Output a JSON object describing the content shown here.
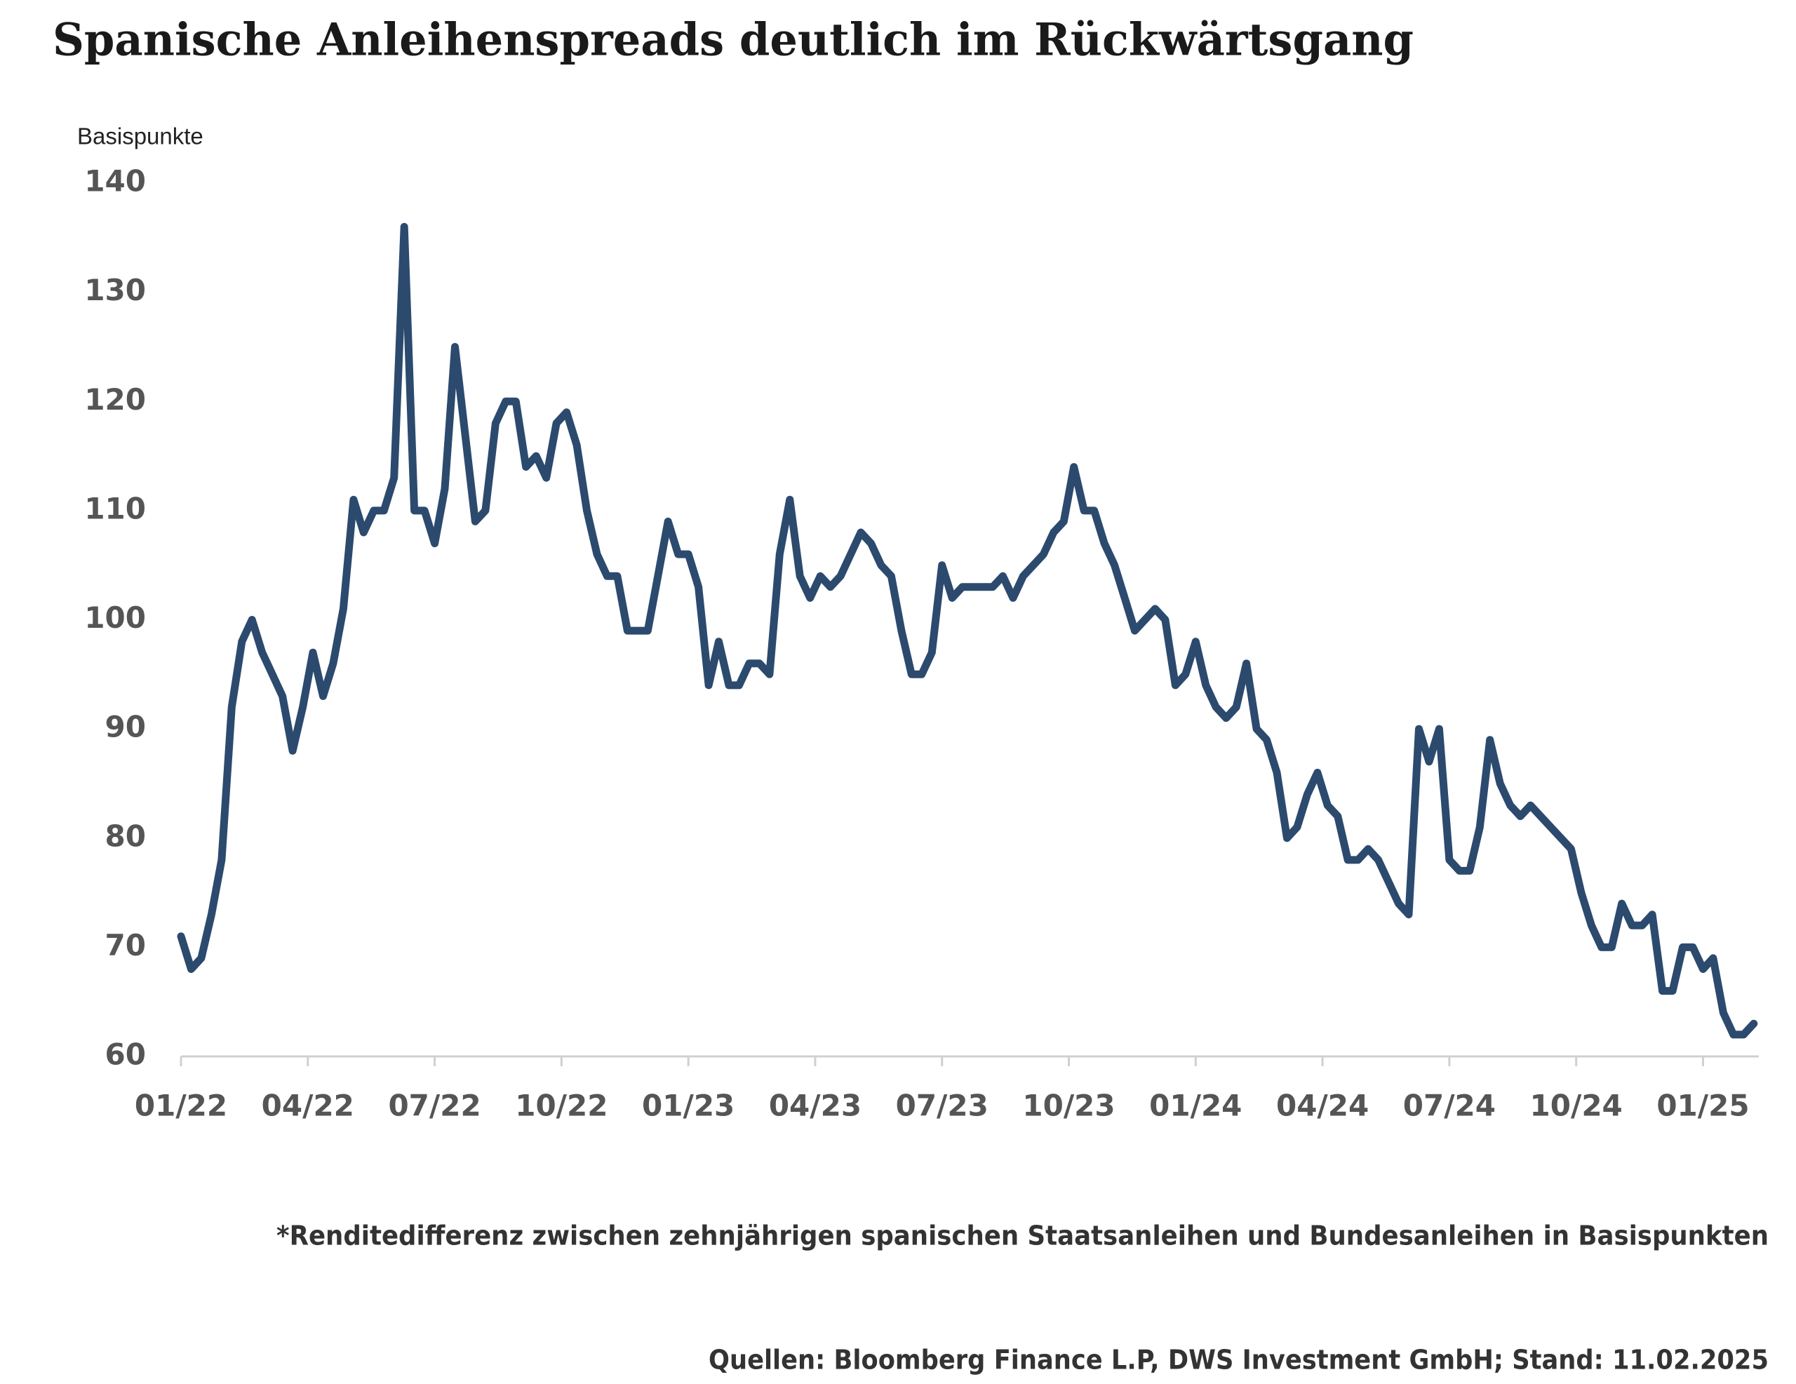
{
  "chart_data": {
    "type": "line",
    "title": "Spanische Anleihenspreads deutlich im Rückwärtsgang",
    "y_label": "Basispunkte",
    "footnote": "*Renditedifferenz zwischen zehnjährigen spanischen Staatsanleihen und Bundesanleihen in Basispunkten",
    "source": "Quellen: Bloomberg Finance L.P, DWS Investment GmbH; Stand: 11.02.2025",
    "color": "#2c4a6e",
    "ylim": [
      60,
      140
    ],
    "yticks": [
      60,
      70,
      80,
      90,
      100,
      110,
      120,
      130,
      140
    ],
    "xlim": [
      2022,
      2025.11
    ],
    "xticks": [
      {
        "value": 2022,
        "label": "01/22"
      },
      {
        "value": 2022.25,
        "label": "04/22"
      },
      {
        "value": 2022.5,
        "label": "07/22"
      },
      {
        "value": 2022.75,
        "label": "10/22"
      },
      {
        "value": 2023,
        "label": "01/23"
      },
      {
        "value": 2023.25,
        "label": "04/23"
      },
      {
        "value": 2023.5,
        "label": "07/23"
      },
      {
        "value": 2023.75,
        "label": "10/23"
      },
      {
        "value": 2024,
        "label": "01/24"
      },
      {
        "value": 2024.25,
        "label": "04/24"
      },
      {
        "value": 2024.5,
        "label": "07/24"
      },
      {
        "value": 2024.75,
        "label": "10/24"
      },
      {
        "value": 2025,
        "label": "01/25"
      }
    ],
    "x": [
      2022,
      2022.02,
      2022.04,
      2022.06,
      2022.08,
      2022.1,
      2022.12,
      2022.14,
      2022.16,
      2022.18,
      2022.2,
      2022.22,
      2022.24,
      2022.26,
      2022.28,
      2022.3,
      2022.32,
      2022.34,
      2022.36,
      2022.38,
      2022.4,
      2022.42,
      2022.44,
      2022.46,
      2022.48,
      2022.5,
      2022.52,
      2022.54,
      2022.56,
      2022.58,
      2022.6,
      2022.62,
      2022.64,
      2022.66,
      2022.68,
      2022.7,
      2022.72,
      2022.74,
      2022.76,
      2022.78,
      2022.8,
      2022.82,
      2022.84,
      2022.86,
      2022.88,
      2022.9,
      2022.92,
      2022.94,
      2022.96,
      2022.98,
      2023,
      2023.02,
      2023.04,
      2023.06,
      2023.08,
      2023.1,
      2023.12,
      2023.14,
      2023.16,
      2023.18,
      2023.2,
      2023.22,
      2023.24,
      2023.26,
      2023.28,
      2023.3,
      2023.32,
      2023.34,
      2023.36,
      2023.38,
      2023.4,
      2023.42,
      2023.44,
      2023.46,
      2023.48,
      2023.5,
      2023.52,
      2023.54,
      2023.56,
      2023.58,
      2023.6,
      2023.62,
      2023.64,
      2023.66,
      2023.68,
      2023.7,
      2023.72,
      2023.74,
      2023.76,
      2023.78,
      2023.8,
      2023.82,
      2023.84,
      2023.86,
      2023.88,
      2023.9,
      2023.92,
      2023.94,
      2023.96,
      2023.98,
      2024,
      2024.02,
      2024.04,
      2024.06,
      2024.08,
      2024.1,
      2024.12,
      2024.14,
      2024.16,
      2024.18,
      2024.2,
      2024.22,
      2024.24,
      2024.26,
      2024.28,
      2024.3,
      2024.32,
      2024.34,
      2024.36,
      2024.38,
      2024.4,
      2024.42,
      2024.44,
      2024.46,
      2024.48,
      2024.5,
      2024.52,
      2024.54,
      2024.56,
      2024.58,
      2024.6,
      2024.62,
      2024.64,
      2024.66,
      2024.68,
      2024.7,
      2024.72,
      2024.74,
      2024.76,
      2024.78,
      2024.8,
      2024.82,
      2024.84,
      2024.86,
      2024.88,
      2024.9,
      2024.92,
      2024.94,
      2024.96,
      2024.98,
      2025,
      2025.02,
      2025.04,
      2025.06,
      2025.08,
      2025.1
    ],
    "values": [
      71,
      68,
      69,
      73,
      78,
      92,
      98,
      100,
      97,
      95,
      93,
      88,
      92,
      97,
      93,
      96,
      101,
      111,
      108,
      110,
      110,
      113,
      136,
      110,
      110,
      107,
      112,
      125,
      117,
      109,
      110,
      118,
      120,
      120,
      114,
      115,
      113,
      118,
      119,
      116,
      110,
      106,
      104,
      104,
      99,
      99,
      99,
      104,
      109,
      106,
      106,
      103,
      94,
      98,
      94,
      94,
      96,
      96,
      95,
      106,
      111,
      104,
      102,
      104,
      103,
      104,
      106,
      108,
      107,
      105,
      104,
      99,
      95,
      95,
      97,
      105,
      102,
      103,
      103,
      103,
      103,
      104,
      102,
      104,
      105,
      106,
      108,
      109,
      114,
      110,
      110,
      107,
      105,
      102,
      99,
      100,
      101,
      100,
      94,
      95,
      98,
      94,
      92,
      91,
      92,
      96,
      90,
      89,
      86,
      80,
      81,
      84,
      86,
      83,
      82,
      78,
      78,
      79,
      78,
      76,
      74,
      73,
      90,
      87,
      90,
      78,
      77,
      77,
      81,
      89,
      85,
      83,
      82,
      83,
      82,
      81,
      80,
      79,
      75,
      72,
      70,
      70,
      74,
      72,
      72,
      73,
      66,
      66,
      70,
      70,
      68,
      69,
      64,
      62,
      62,
      63
    ]
  }
}
